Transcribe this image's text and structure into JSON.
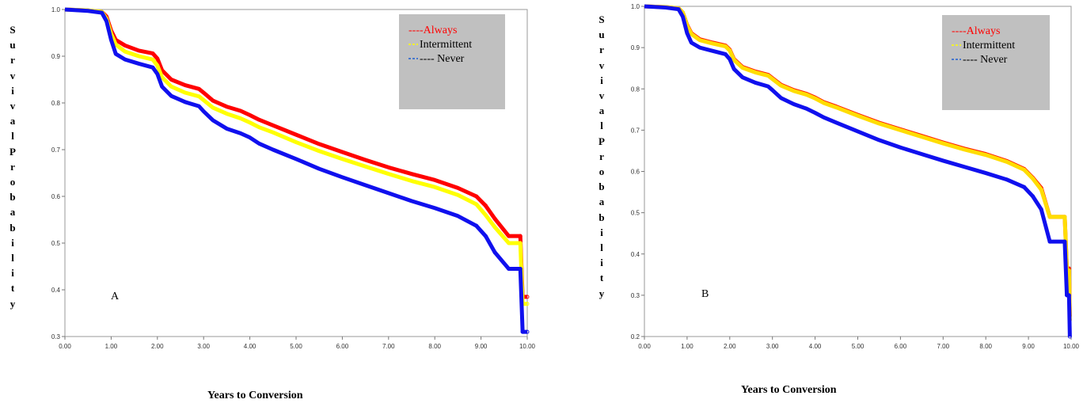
{
  "chart_data": [
    {
      "type": "line",
      "panel_label": "A",
      "ylabel": "SurvivalProbability",
      "xlabel": "Years to Conversion",
      "xlim": [
        0,
        10
      ],
      "ylim": [
        0.3,
        1.0
      ],
      "x_ticks": [
        "0.00",
        "1.00",
        "2.00",
        "3.00",
        "4.00",
        "5.00",
        "6.00",
        "7.00",
        "8.00",
        "9.00",
        "10.00"
      ],
      "y_ticks": [
        "0.3",
        "0.4",
        "0.5",
        "0.6",
        "0.7",
        "0.8",
        "0.9",
        "1.0"
      ],
      "legend_position": "top-right",
      "legend": [
        {
          "label": "----Always",
          "color": "#ff0000"
        },
        {
          "label": "Intermittent",
          "color": "#000000",
          "dash_color": "#ffff00"
        },
        {
          "label": "---- Never",
          "color": "#000000",
          "dash_color": "#1f5fd0"
        }
      ],
      "series": [
        {
          "color": "#ff0000",
          "points": [
            [
              0.0,
              1.0
            ],
            [
              0.5,
              0.998
            ],
            [
              0.8,
              0.995
            ],
            [
              0.9,
              0.985
            ],
            [
              1.0,
              0.955
            ],
            [
              1.1,
              0.935
            ],
            [
              1.3,
              0.923
            ],
            [
              1.6,
              0.912
            ],
            [
              1.9,
              0.906
            ],
            [
              2.0,
              0.895
            ],
            [
              2.1,
              0.87
            ],
            [
              2.3,
              0.85
            ],
            [
              2.6,
              0.838
            ],
            [
              2.9,
              0.83
            ],
            [
              3.0,
              0.822
            ],
            [
              3.2,
              0.805
            ],
            [
              3.5,
              0.792
            ],
            [
              3.8,
              0.783
            ],
            [
              4.0,
              0.774
            ],
            [
              4.2,
              0.764
            ],
            [
              4.5,
              0.752
            ],
            [
              5.0,
              0.732
            ],
            [
              5.5,
              0.712
            ],
            [
              6.0,
              0.695
            ],
            [
              6.5,
              0.678
            ],
            [
              7.0,
              0.662
            ],
            [
              7.5,
              0.648
            ],
            [
              8.0,
              0.635
            ],
            [
              8.5,
              0.618
            ],
            [
              8.9,
              0.6
            ],
            [
              9.1,
              0.58
            ],
            [
              9.3,
              0.552
            ],
            [
              9.6,
              0.515
            ],
            [
              9.85,
              0.515
            ],
            [
              9.9,
              0.385
            ],
            [
              10.0,
              0.385
            ]
          ]
        },
        {
          "color": "#ffff00",
          "points": [
            [
              0.0,
              1.0
            ],
            [
              0.5,
              0.998
            ],
            [
              0.8,
              0.995
            ],
            [
              0.9,
              0.98
            ],
            [
              1.0,
              0.948
            ],
            [
              1.1,
              0.925
            ],
            [
              1.3,
              0.91
            ],
            [
              1.6,
              0.9
            ],
            [
              1.9,
              0.893
            ],
            [
              2.0,
              0.88
            ],
            [
              2.1,
              0.855
            ],
            [
              2.3,
              0.835
            ],
            [
              2.6,
              0.822
            ],
            [
              2.9,
              0.814
            ],
            [
              3.0,
              0.806
            ],
            [
              3.2,
              0.79
            ],
            [
              3.5,
              0.777
            ],
            [
              3.8,
              0.767
            ],
            [
              4.0,
              0.758
            ],
            [
              4.2,
              0.748
            ],
            [
              4.5,
              0.737
            ],
            [
              5.0,
              0.716
            ],
            [
              5.5,
              0.697
            ],
            [
              6.0,
              0.68
            ],
            [
              6.5,
              0.664
            ],
            [
              7.0,
              0.648
            ],
            [
              7.5,
              0.633
            ],
            [
              8.0,
              0.62
            ],
            [
              8.5,
              0.603
            ],
            [
              8.9,
              0.583
            ],
            [
              9.1,
              0.56
            ],
            [
              9.3,
              0.534
            ],
            [
              9.6,
              0.5
            ],
            [
              9.85,
              0.5
            ],
            [
              9.9,
              0.37
            ],
            [
              10.0,
              0.37
            ]
          ]
        },
        {
          "color": "#1010ee",
          "points": [
            [
              0.0,
              1.0
            ],
            [
              0.5,
              0.997
            ],
            [
              0.8,
              0.993
            ],
            [
              0.9,
              0.975
            ],
            [
              1.0,
              0.935
            ],
            [
              1.1,
              0.905
            ],
            [
              1.3,
              0.893
            ],
            [
              1.6,
              0.884
            ],
            [
              1.9,
              0.876
            ],
            [
              2.0,
              0.862
            ],
            [
              2.1,
              0.835
            ],
            [
              2.3,
              0.815
            ],
            [
              2.6,
              0.802
            ],
            [
              2.9,
              0.793
            ],
            [
              3.0,
              0.782
            ],
            [
              3.2,
              0.763
            ],
            [
              3.5,
              0.745
            ],
            [
              3.8,
              0.735
            ],
            [
              4.0,
              0.726
            ],
            [
              4.2,
              0.713
            ],
            [
              4.5,
              0.7
            ],
            [
              5.0,
              0.68
            ],
            [
              5.5,
              0.659
            ],
            [
              6.0,
              0.641
            ],
            [
              6.5,
              0.624
            ],
            [
              7.0,
              0.607
            ],
            [
              7.5,
              0.59
            ],
            [
              8.0,
              0.575
            ],
            [
              8.5,
              0.558
            ],
            [
              8.9,
              0.537
            ],
            [
              9.1,
              0.515
            ],
            [
              9.3,
              0.48
            ],
            [
              9.6,
              0.445
            ],
            [
              9.85,
              0.445
            ],
            [
              9.9,
              0.31
            ],
            [
              10.0,
              0.31
            ]
          ]
        }
      ]
    },
    {
      "type": "line",
      "panel_label": "B",
      "ylabel": "SurvivalProbability",
      "xlabel": "Years to Conversion",
      "xlim": [
        0,
        10
      ],
      "ylim": [
        0.2,
        1.0
      ],
      "x_ticks": [
        "0.00",
        "1.00",
        "2.00",
        "3.00",
        "4.00",
        "5.00",
        "6.00",
        "7.00",
        "8.00",
        "9.00",
        "10.00"
      ],
      "y_ticks": [
        "0.2",
        "0.3",
        "0.4",
        "0.5",
        "0.6",
        "0.7",
        "0.8",
        "0.9",
        "1.0"
      ],
      "legend_position": "top-right",
      "legend": [
        {
          "label": "----Always",
          "color": "#ff0000"
        },
        {
          "label": "Intermittent",
          "color": "#000000",
          "dash_color": "#ffff00"
        },
        {
          "label": "---- Never",
          "color": "#000000",
          "dash_color": "#1f5fd0"
        }
      ],
      "series": [
        {
          "color": "#ff2000",
          "points": [
            [
              0.0,
              1.0
            ],
            [
              0.5,
              0.998
            ],
            [
              0.8,
              0.995
            ],
            [
              0.9,
              0.985
            ],
            [
              1.0,
              0.955
            ],
            [
              1.1,
              0.935
            ],
            [
              1.3,
              0.92
            ],
            [
              1.6,
              0.912
            ],
            [
              1.9,
              0.905
            ],
            [
              2.0,
              0.895
            ],
            [
              2.1,
              0.872
            ],
            [
              2.3,
              0.853
            ],
            [
              2.6,
              0.842
            ],
            [
              2.9,
              0.834
            ],
            [
              3.0,
              0.826
            ],
            [
              3.2,
              0.81
            ],
            [
              3.5,
              0.797
            ],
            [
              3.8,
              0.788
            ],
            [
              4.0,
              0.779
            ],
            [
              4.2,
              0.768
            ],
            [
              4.5,
              0.757
            ],
            [
              5.0,
              0.737
            ],
            [
              5.5,
              0.718
            ],
            [
              6.0,
              0.702
            ],
            [
              6.5,
              0.686
            ],
            [
              7.0,
              0.67
            ],
            [
              7.5,
              0.655
            ],
            [
              8.0,
              0.642
            ],
            [
              8.5,
              0.625
            ],
            [
              8.9,
              0.606
            ],
            [
              9.1,
              0.585
            ],
            [
              9.3,
              0.56
            ],
            [
              9.5,
              0.49
            ],
            [
              9.85,
              0.49
            ],
            [
              9.9,
              0.365
            ],
            [
              9.95,
              0.365
            ],
            [
              9.97,
              0.25
            ]
          ]
        },
        {
          "color": "#ffdd00",
          "points": [
            [
              0.0,
              1.0
            ],
            [
              0.5,
              0.998
            ],
            [
              0.8,
              0.995
            ],
            [
              0.9,
              0.985
            ],
            [
              1.0,
              0.953
            ],
            [
              1.1,
              0.933
            ],
            [
              1.3,
              0.918
            ],
            [
              1.6,
              0.91
            ],
            [
              1.9,
              0.903
            ],
            [
              2.0,
              0.893
            ],
            [
              2.1,
              0.87
            ],
            [
              2.3,
              0.851
            ],
            [
              2.6,
              0.84
            ],
            [
              2.9,
              0.832
            ],
            [
              3.0,
              0.824
            ],
            [
              3.2,
              0.808
            ],
            [
              3.5,
              0.795
            ],
            [
              3.8,
              0.786
            ],
            [
              4.0,
              0.777
            ],
            [
              4.2,
              0.766
            ],
            [
              4.5,
              0.755
            ],
            [
              5.0,
              0.735
            ],
            [
              5.5,
              0.716
            ],
            [
              6.0,
              0.7
            ],
            [
              6.5,
              0.684
            ],
            [
              7.0,
              0.668
            ],
            [
              7.5,
              0.653
            ],
            [
              8.0,
              0.64
            ],
            [
              8.5,
              0.623
            ],
            [
              8.9,
              0.604
            ],
            [
              9.1,
              0.583
            ],
            [
              9.3,
              0.556
            ],
            [
              9.5,
              0.49
            ],
            [
              9.85,
              0.49
            ],
            [
              9.9,
              0.36
            ],
            [
              9.95,
              0.36
            ],
            [
              9.97,
              0.24
            ]
          ]
        },
        {
          "color": "#1010ee",
          "points": [
            [
              0.0,
              1.0
            ],
            [
              0.5,
              0.997
            ],
            [
              0.8,
              0.993
            ],
            [
              0.9,
              0.975
            ],
            [
              1.0,
              0.935
            ],
            [
              1.1,
              0.912
            ],
            [
              1.3,
              0.9
            ],
            [
              1.6,
              0.892
            ],
            [
              1.9,
              0.884
            ],
            [
              2.0,
              0.872
            ],
            [
              2.1,
              0.848
            ],
            [
              2.3,
              0.828
            ],
            [
              2.6,
              0.815
            ],
            [
              2.9,
              0.806
            ],
            [
              3.0,
              0.797
            ],
            [
              3.2,
              0.778
            ],
            [
              3.5,
              0.763
            ],
            [
              3.8,
              0.752
            ],
            [
              4.0,
              0.742
            ],
            [
              4.2,
              0.731
            ],
            [
              4.5,
              0.718
            ],
            [
              5.0,
              0.697
            ],
            [
              5.5,
              0.676
            ],
            [
              6.0,
              0.658
            ],
            [
              6.5,
              0.642
            ],
            [
              7.0,
              0.626
            ],
            [
              7.5,
              0.611
            ],
            [
              8.0,
              0.596
            ],
            [
              8.5,
              0.58
            ],
            [
              8.9,
              0.562
            ],
            [
              9.1,
              0.54
            ],
            [
              9.3,
              0.508
            ],
            [
              9.5,
              0.43
            ],
            [
              9.85,
              0.43
            ],
            [
              9.9,
              0.3
            ],
            [
              9.95,
              0.3
            ],
            [
              9.97,
              0.2
            ]
          ]
        }
      ]
    }
  ]
}
